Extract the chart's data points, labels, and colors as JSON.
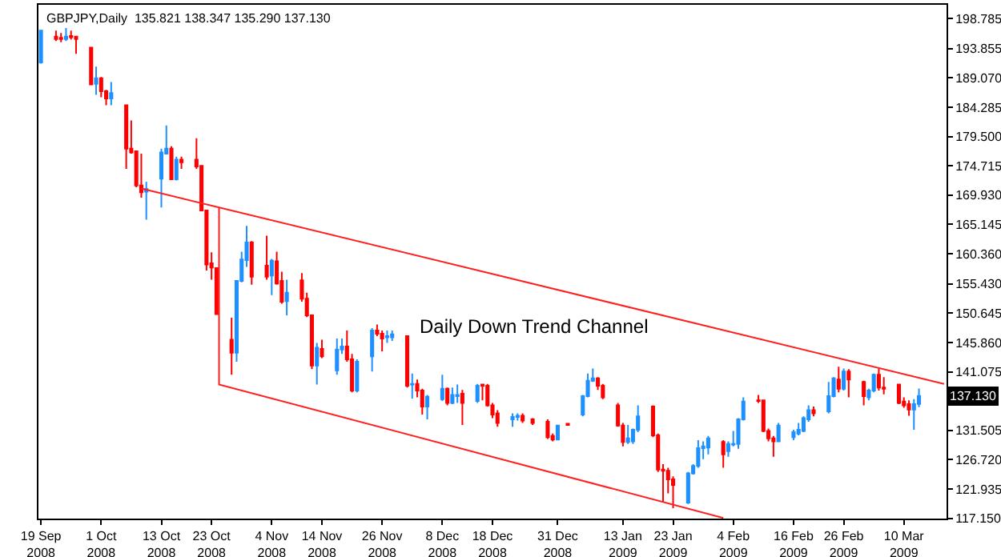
{
  "chart_data": {
    "type": "candlestick",
    "title": "GBPJPY,Daily  135.821 138.347 135.290 137.130",
    "x": [
      "2008-09-19",
      "2008-09-22",
      "2008-09-23",
      "2008-09-24",
      "2008-09-25",
      "2008-09-26",
      "2008-09-29",
      "2008-09-30",
      "2008-10-01",
      "2008-10-02",
      "2008-10-03",
      "2008-10-06",
      "2008-10-07",
      "2008-10-08",
      "2008-10-09",
      "2008-10-10",
      "2008-10-13",
      "2008-10-14",
      "2008-10-15",
      "2008-10-16",
      "2008-10-17",
      "2008-10-20",
      "2008-10-21",
      "2008-10-22",
      "2008-10-23",
      "2008-10-24",
      "2008-10-27",
      "2008-10-28",
      "2008-10-29",
      "2008-10-30",
      "2008-10-31",
      "2008-11-03",
      "2008-11-04",
      "2008-11-05",
      "2008-11-06",
      "2008-11-07",
      "2008-11-10",
      "2008-11-11",
      "2008-11-12",
      "2008-11-13",
      "2008-11-14",
      "2008-11-17",
      "2008-11-18",
      "2008-11-19",
      "2008-11-20",
      "2008-11-21",
      "2008-11-24",
      "2008-11-25",
      "2008-11-26",
      "2008-11-27",
      "2008-11-28",
      "2008-12-01",
      "2008-12-02",
      "2008-12-03",
      "2008-12-04",
      "2008-12-05",
      "2008-12-08",
      "2008-12-09",
      "2008-12-10",
      "2008-12-11",
      "2008-12-12",
      "2008-12-15",
      "2008-12-16",
      "2008-12-17",
      "2008-12-18",
      "2008-12-19",
      "2008-12-22",
      "2008-12-23",
      "2008-12-24",
      "2008-12-26",
      "2008-12-29",
      "2008-12-30",
      "2008-12-31",
      "2009-01-02",
      "2009-01-05",
      "2009-01-06",
      "2009-01-07",
      "2009-01-08",
      "2009-01-09",
      "2009-01-12",
      "2009-01-13",
      "2009-01-14",
      "2009-01-15",
      "2009-01-16",
      "2009-01-19",
      "2009-01-20",
      "2009-01-21",
      "2009-01-22",
      "2009-01-23",
      "2009-01-26",
      "2009-01-27",
      "2009-01-28",
      "2009-01-29",
      "2009-01-30",
      "2009-02-02",
      "2009-02-03",
      "2009-02-04",
      "2009-02-05",
      "2009-02-06",
      "2009-02-09",
      "2009-02-10",
      "2009-02-11",
      "2009-02-12",
      "2009-02-13",
      "2009-02-16",
      "2009-02-17",
      "2009-02-18",
      "2009-02-19",
      "2009-02-20",
      "2009-02-23",
      "2009-02-24",
      "2009-02-25",
      "2009-02-26",
      "2009-02-27",
      "2009-03-02",
      "2009-03-03",
      "2009-03-04",
      "2009-03-05",
      "2009-03-06",
      "2009-03-09",
      "2009-03-10",
      "2009-03-11",
      "2009-03-12",
      "2009-03-13"
    ],
    "ohlc": [
      [
        191.6,
        196.9,
        191.4,
        196.8
      ],
      [
        195.8,
        196.8,
        195.1,
        195.4
      ],
      [
        195.6,
        196.4,
        194.9,
        195.4
      ],
      [
        195.4,
        197.2,
        195.1,
        195.8
      ],
      [
        195.9,
        196.8,
        195.3,
        195.7
      ],
      [
        195.8,
        195.9,
        193.0,
        195.4
      ],
      [
        194.0,
        194.1,
        187.9,
        188.0
      ],
      [
        188.1,
        190.9,
        186.3,
        189.0
      ],
      [
        189.0,
        189.2,
        185.9,
        186.9
      ],
      [
        186.9,
        187.1,
        184.6,
        185.7
      ],
      [
        185.7,
        188.4,
        184.6,
        186.6
      ],
      [
        184.6,
        184.7,
        174.2,
        177.5
      ],
      [
        177.5,
        182.1,
        176.7,
        176.9
      ],
      [
        177.1,
        177.1,
        171.2,
        171.5
      ],
      [
        171.5,
        176.7,
        169.5,
        170.4
      ],
      [
        170.5,
        172.1,
        165.9,
        170.9
      ],
      [
        172.6,
        177.5,
        167.9,
        176.9
      ],
      [
        176.7,
        181.3,
        176.6,
        177.5
      ],
      [
        177.5,
        177.9,
        172.4,
        172.5
      ],
      [
        172.5,
        176.2,
        172.3,
        175.7
      ],
      [
        175.7,
        176.2,
        174.2,
        175.3
      ],
      [
        175.7,
        179.2,
        174.2,
        174.6
      ],
      [
        174.7,
        174.8,
        167.4,
        167.4
      ],
      [
        167.4,
        167.5,
        157.6,
        158.6
      ],
      [
        158.8,
        160.6,
        156.1,
        158.1
      ],
      [
        158.0,
        158.0,
        150.4,
        150.5
      ],
      [
        146.3,
        149.9,
        140.6,
        144.2
      ],
      [
        144.2,
        155.9,
        142.7,
        155.9
      ],
      [
        155.9,
        160.7,
        155.7,
        159.4
      ],
      [
        159.3,
        164.9,
        158.2,
        162.2
      ],
      [
        162.2,
        162.4,
        155.3,
        156.6
      ],
      [
        158.4,
        163.3,
        156.1,
        156.6
      ],
      [
        156.8,
        159.5,
        153.6,
        159.2
      ],
      [
        159.1,
        160.7,
        155.3,
        155.5
      ],
      [
        155.9,
        157.4,
        152.2,
        152.5
      ],
      [
        152.6,
        156.1,
        150.3,
        154.0
      ],
      [
        156.0,
        157.2,
        152.5,
        153.0
      ],
      [
        153.0,
        154.0,
        150.0,
        150.3
      ],
      [
        150.3,
        150.3,
        141.5,
        142.1
      ],
      [
        142.1,
        145.8,
        139.0,
        145.0
      ],
      [
        144.8,
        146.3,
        143.3,
        143.6
      ],
      [
        141.3,
        146.5,
        140.6,
        144.7
      ],
      [
        144.7,
        146.5,
        144.0,
        145.2
      ],
      [
        145.2,
        147.8,
        142.7,
        143.1
      ],
      [
        143.1,
        144.0,
        137.7,
        138.0
      ],
      [
        138.0,
        143.1,
        137.7,
        142.7
      ],
      [
        143.6,
        148.2,
        141.1,
        147.8
      ],
      [
        147.8,
        148.8,
        146.9,
        147.3
      ],
      [
        147.3,
        147.8,
        144.4,
        146.5
      ],
      [
        146.7,
        147.8,
        145.8,
        146.9
      ],
      [
        146.7,
        147.8,
        146.1,
        147.2
      ],
      [
        146.9,
        147.0,
        138.5,
        138.8
      ],
      [
        139.0,
        140.8,
        136.7,
        139.1
      ],
      [
        139.1,
        139.8,
        136.9,
        138.0
      ],
      [
        138.0,
        138.3,
        134.1,
        135.4
      ],
      [
        135.4,
        137.3,
        133.3,
        137.0
      ],
      [
        136.6,
        140.6,
        136.3,
        138.3
      ],
      [
        138.3,
        138.5,
        135.6,
        136.0
      ],
      [
        136.0,
        138.5,
        135.8,
        137.3
      ],
      [
        137.1,
        139.0,
        136.0,
        137.3
      ],
      [
        137.5,
        138.1,
        132.4,
        136.0
      ],
      [
        136.3,
        139.1,
        136.0,
        138.8
      ],
      [
        139.0,
        139.1,
        136.4,
        138.8
      ],
      [
        138.8,
        139.1,
        135.4,
        135.6
      ],
      [
        135.6,
        136.0,
        133.5,
        134.1
      ],
      [
        134.3,
        134.8,
        132.1,
        132.7
      ],
      [
        133.3,
        134.3,
        132.1,
        133.7
      ],
      [
        133.7,
        134.3,
        133.1,
        133.9
      ],
      [
        133.9,
        134.3,
        132.7,
        133.1
      ],
      [
        133.3,
        133.5,
        132.4,
        132.7
      ],
      [
        132.9,
        133.3,
        130.1,
        130.4
      ],
      [
        130.6,
        131.0,
        129.7,
        130.0
      ],
      [
        130.0,
        132.4,
        129.9,
        132.3
      ],
      [
        132.6,
        132.7,
        132.3,
        132.4
      ],
      [
        134.1,
        137.3,
        133.8,
        137.1
      ],
      [
        137.1,
        140.8,
        136.9,
        139.6
      ],
      [
        139.6,
        141.6,
        139.4,
        140.0
      ],
      [
        140.0,
        140.2,
        138.1,
        138.8
      ],
      [
        138.8,
        139.1,
        136.6,
        136.9
      ],
      [
        135.6,
        136.0,
        132.1,
        132.3
      ],
      [
        132.3,
        132.7,
        128.9,
        129.6
      ],
      [
        129.6,
        132.4,
        129.3,
        130.2
      ],
      [
        129.7,
        131.8,
        129.3,
        131.6
      ],
      [
        131.6,
        135.6,
        131.2,
        133.8
      ],
      [
        135.4,
        135.6,
        130.4,
        130.7
      ],
      [
        130.7,
        131.0,
        124.7,
        125.1
      ],
      [
        125.1,
        126.0,
        119.7,
        124.9
      ],
      [
        124.9,
        125.4,
        121.2,
        123.5
      ],
      [
        123.5,
        124.0,
        118.8,
        122.6
      ],
      [
        119.7,
        124.7,
        119.5,
        124.5
      ],
      [
        124.5,
        126.0,
        124.3,
        125.7
      ],
      [
        125.7,
        129.9,
        125.4,
        128.6
      ],
      [
        128.6,
        129.7,
        126.8,
        128.9
      ],
      [
        128.7,
        130.6,
        127.6,
        130.2
      ],
      [
        129.6,
        129.9,
        125.4,
        127.6
      ],
      [
        128.1,
        129.7,
        127.2,
        129.3
      ],
      [
        129.2,
        131.4,
        128.9,
        129.3
      ],
      [
        129.3,
        133.5,
        128.5,
        133.3
      ],
      [
        133.3,
        136.9,
        133.1,
        136.2
      ],
      [
        136.4,
        137.3,
        136.0,
        136.3
      ],
      [
        136.4,
        136.5,
        131.2,
        131.4
      ],
      [
        131.4,
        131.8,
        129.7,
        130.2
      ],
      [
        130.2,
        130.6,
        127.2,
        129.7
      ],
      [
        129.7,
        132.7,
        129.6,
        132.3
      ],
      [
        130.4,
        131.6,
        129.9,
        131.2
      ],
      [
        131.0,
        132.7,
        130.7,
        131.6
      ],
      [
        131.4,
        133.8,
        131.2,
        133.5
      ],
      [
        133.3,
        135.6,
        132.9,
        134.8
      ],
      [
        134.8,
        135.4,
        133.8,
        134.3
      ],
      [
        134.6,
        139.4,
        134.3,
        137.1
      ],
      [
        137.1,
        140.2,
        136.9,
        140.0
      ],
      [
        139.8,
        141.9,
        137.7,
        138.3
      ],
      [
        138.3,
        141.6,
        138.0,
        141.1
      ],
      [
        141.1,
        141.5,
        136.9,
        139.8
      ],
      [
        139.4,
        139.6,
        135.6,
        137.1
      ],
      [
        136.9,
        138.3,
        136.4,
        138.0
      ],
      [
        138.0,
        140.8,
        137.7,
        140.6
      ],
      [
        140.6,
        141.6,
        138.0,
        138.5
      ],
      [
        138.5,
        140.2,
        137.4,
        138.3
      ],
      [
        139.0,
        139.1,
        135.8,
        136.0
      ],
      [
        136.2,
        136.9,
        135.2,
        135.6
      ],
      [
        135.8,
        136.4,
        133.9,
        134.9
      ],
      [
        134.9,
        136.6,
        131.6,
        135.8
      ],
      [
        135.821,
        138.347,
        135.29,
        137.13
      ]
    ],
    "colors": [
      "#1e90ff",
      "#ff0000",
      "#ff0000",
      "#1e90ff",
      "#ff0000",
      "#ff0000",
      "#ff0000",
      "#1e90ff",
      "#ff0000",
      "#ff0000",
      "#1e90ff",
      "#ff0000",
      "#ff0000",
      "#ff0000",
      "#ff0000",
      "#1e90ff",
      "#1e90ff",
      "#1e90ff",
      "#ff0000",
      "#1e90ff",
      "#ff0000",
      "#ff0000",
      "#ff0000",
      "#ff0000",
      "#ff0000",
      "#ff0000",
      "#ff0000",
      "#1e90ff",
      "#1e90ff",
      "#1e90ff",
      "#ff0000",
      "#ff0000",
      "#1e90ff",
      "#ff0000",
      "#ff0000",
      "#1e90ff",
      "#ff0000",
      "#ff0000",
      "#ff0000",
      "#1e90ff",
      "#ff0000",
      "#1e90ff",
      "#1e90ff",
      "#ff0000",
      "#ff0000",
      "#1e90ff",
      "#1e90ff",
      "#ff0000",
      "#ff0000",
      "#1e90ff",
      "#1e90ff",
      "#ff0000",
      "#1e90ff",
      "#ff0000",
      "#ff0000",
      "#1e90ff",
      "#1e90ff",
      "#ff0000",
      "#1e90ff",
      "#1e90ff",
      "#ff0000",
      "#1e90ff",
      "#ff0000",
      "#ff0000",
      "#ff0000",
      "#ff0000",
      "#1e90ff",
      "#1e90ff",
      "#ff0000",
      "#ff0000",
      "#ff0000",
      "#ff0000",
      "#1e90ff",
      "#ff0000",
      "#1e90ff",
      "#1e90ff",
      "#1e90ff",
      "#ff0000",
      "#ff0000",
      "#ff0000",
      "#ff0000",
      "#1e90ff",
      "#1e90ff",
      "#1e90ff",
      "#ff0000",
      "#ff0000",
      "#ff0000",
      "#ff0000",
      "#ff0000",
      "#1e90ff",
      "#1e90ff",
      "#1e90ff",
      "#1e90ff",
      "#1e90ff",
      "#ff0000",
      "#1e90ff",
      "#1e90ff",
      "#1e90ff",
      "#1e90ff",
      "#ff0000",
      "#ff0000",
      "#ff0000",
      "#ff0000",
      "#1e90ff",
      "#1e90ff",
      "#1e90ff",
      "#1e90ff",
      "#1e90ff",
      "#ff0000",
      "#1e90ff",
      "#1e90ff",
      "#ff0000",
      "#1e90ff",
      "#ff0000",
      "#ff0000",
      "#1e90ff",
      "#1e90ff",
      "#ff0000",
      "#ff0000",
      "#ff0000",
      "#ff0000",
      "#ff0000",
      "#1e90ff",
      "#1e90ff"
    ],
    "series": [
      {
        "type": "line",
        "color": "#ff2020",
        "x": [
          "2008-10-09",
          "2009-03-18"
        ],
        "values": [
          171.0,
          139.1
        ]
      },
      {
        "type": "line",
        "color": "#ff2020",
        "x": [
          "2008-10-24T12:00",
          "2008-10-24T12:00",
          "2009-02-02"
        ],
        "values": [
          167.9,
          139.0,
          117.2
        ]
      }
    ],
    "annotations": [
      "Daily Down Trend Channel",
      "137.130"
    ],
    "xlim": [
      "2008-09-18T12:00",
      "2009-03-18T12:00"
    ],
    "xticks": [
      {
        "value": "2008-09-19",
        "label": "19 Sep 2008"
      },
      {
        "value": "2008-10-01",
        "label": "1 Oct 2008"
      },
      {
        "value": "2008-10-13",
        "label": "13 Oct 2008"
      },
      {
        "value": "2008-10-23",
        "label": "23 Oct 2008"
      },
      {
        "value": "2008-11-04",
        "label": "4 Nov 2008"
      },
      {
        "value": "2008-11-14",
        "label": "14 Nov 2008"
      },
      {
        "value": "2008-11-26",
        "label": "26 Nov 2008"
      },
      {
        "value": "2008-12-08",
        "label": "8 Dec 2008"
      },
      {
        "value": "2008-12-18",
        "label": "18 Dec 2008"
      },
      {
        "value": "2008-12-31",
        "label": "31 Dec 2008"
      },
      {
        "value": "2009-01-13",
        "label": "13 Jan 2009"
      },
      {
        "value": "2009-01-23",
        "label": "23 Jan 2009"
      },
      {
        "value": "2009-02-04",
        "label": "4 Feb 2009"
      },
      {
        "value": "2009-02-16",
        "label": "16 Feb 2009"
      },
      {
        "value": "2009-02-26",
        "label": "26 Feb 2009"
      },
      {
        "value": "2009-03-10",
        "label": "10 Mar 2009"
      }
    ],
    "ylim": [
      117.1,
      201.0
    ],
    "yticks": [
      198.785,
      193.855,
      {
        "value": 189.07,
        "label": "189.070"
      },
      184.285,
      {
        "value": 179.5,
        "label": "179.500"
      },
      174.715,
      {
        "value": 169.93,
        "label": "169.930"
      },
      165.145,
      {
        "value": 160.36,
        "label": "160.360"
      },
      {
        "value": 155.43,
        "label": "155.430"
      },
      150.645,
      {
        "value": 145.86,
        "label": "145.860"
      },
      141.075,
      {
        "value": 136.29,
        "label": null
      },
      131.505,
      {
        "value": 126.72,
        "label": "126.720"
      },
      121.935,
      {
        "value": 117.15,
        "label": "117.150"
      }
    ]
  }
}
